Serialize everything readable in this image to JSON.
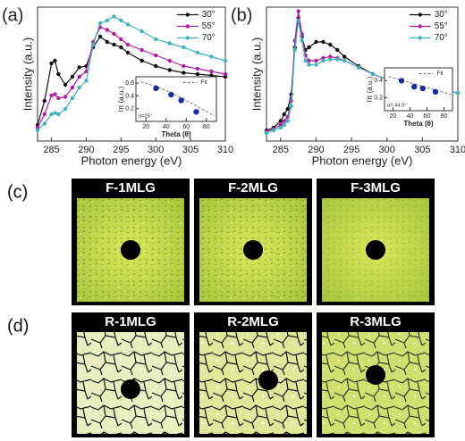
{
  "chart_data": [
    {
      "type": "line",
      "panel_label": "(a)",
      "xlabel": "Photon energy (eV)",
      "ylabel": "Intensity (a.u.)",
      "x": [
        283,
        284,
        285,
        285.5,
        286,
        287,
        288,
        289,
        290,
        291,
        292,
        293,
        294,
        295,
        296,
        298,
        300,
        302,
        304,
        306,
        308,
        310
      ],
      "xlim": [
        283,
        310
      ],
      "xticks": [
        285,
        290,
        295,
        300,
        305,
        310
      ],
      "ylim": [
        0,
        1
      ],
      "legend": "top-right",
      "series": [
        {
          "name": "30°",
          "color": "#111111",
          "values": [
            0.12,
            0.3,
            0.58,
            0.6,
            0.5,
            0.42,
            0.48,
            0.55,
            0.56,
            0.7,
            0.78,
            0.74,
            0.72,
            0.7,
            0.66,
            0.6,
            0.56,
            0.53,
            0.51,
            0.5,
            0.49,
            0.48
          ]
        },
        {
          "name": "55°",
          "color": "#b01fa0",
          "values": [
            0.1,
            0.2,
            0.34,
            0.35,
            0.32,
            0.33,
            0.4,
            0.48,
            0.52,
            0.74,
            0.85,
            0.83,
            0.8,
            0.76,
            0.72,
            0.68,
            0.64,
            0.6,
            0.56,
            0.54,
            0.52,
            0.5
          ]
        },
        {
          "name": "70°",
          "color": "#3fb5b5",
          "values": [
            0.08,
            0.13,
            0.2,
            0.21,
            0.2,
            0.24,
            0.32,
            0.4,
            0.45,
            0.72,
            0.88,
            0.9,
            0.93,
            0.9,
            0.87,
            0.82,
            0.76,
            0.73,
            0.7,
            0.66,
            0.63,
            0.6
          ]
        }
      ]
    },
    {
      "type": "scatter",
      "xlabel": "Theta (θ)",
      "ylabel": "Iπ (a.u.)",
      "annotation": "α=25°",
      "xlim": [
        10,
        90
      ],
      "xticks": [
        20,
        40,
        60,
        80
      ],
      "ylim": [
        0,
        0.7
      ],
      "yticks": [
        0.2,
        0.4,
        0.6
      ],
      "legend": "top-right",
      "series": [
        {
          "name": "Fit",
          "color": "#777777",
          "x": [
            15,
            30,
            45,
            60,
            75,
            88
          ],
          "values": [
            0.62,
            0.55,
            0.45,
            0.33,
            0.2,
            0.09
          ]
        }
      ],
      "points": {
        "color": "#1a2a9a",
        "x": [
          30,
          45,
          55,
          70
        ],
        "values": [
          0.52,
          0.42,
          0.33,
          0.15
        ]
      }
    },
    {
      "type": "line",
      "panel_label": "(b)",
      "xlabel": "Photon energy (eV)",
      "ylabel": "Intensity (a.u.)",
      "x": [
        283,
        284,
        285,
        285.5,
        286,
        286.5,
        287,
        287.5,
        288,
        288.5,
        289,
        290,
        291,
        292,
        293,
        294,
        296,
        298,
        300,
        303,
        306,
        310
      ],
      "xlim": [
        283,
        310
      ],
      "xticks": [
        285,
        290,
        295,
        300,
        305,
        310
      ],
      "ylim": [
        0,
        1
      ],
      "legend": "top-right",
      "series": [
        {
          "name": "30°",
          "color": "#111111",
          "values": [
            0.08,
            0.1,
            0.15,
            0.2,
            0.24,
            0.35,
            0.7,
            0.92,
            0.78,
            0.68,
            0.7,
            0.74,
            0.74,
            0.72,
            0.68,
            0.63,
            0.56,
            0.5,
            0.46,
            0.42,
            0.39,
            0.36
          ]
        },
        {
          "name": "55°",
          "color": "#b01fa0",
          "values": [
            0.07,
            0.09,
            0.12,
            0.15,
            0.18,
            0.3,
            0.75,
            0.97,
            0.8,
            0.64,
            0.6,
            0.6,
            0.62,
            0.63,
            0.62,
            0.6,
            0.55,
            0.5,
            0.46,
            0.42,
            0.39,
            0.36
          ]
        },
        {
          "name": "70°",
          "color": "#3fb5b5",
          "values": [
            0.06,
            0.08,
            0.1,
            0.12,
            0.15,
            0.26,
            0.68,
            0.9,
            0.75,
            0.6,
            0.57,
            0.57,
            0.6,
            0.61,
            0.61,
            0.6,
            0.55,
            0.5,
            0.46,
            0.42,
            0.39,
            0.36
          ]
        }
      ]
    },
    {
      "type": "scatter",
      "xlabel": "Theta (θ)",
      "ylabel": "Iπ (a.u.)",
      "annotation": "α= 44.5°",
      "xlim": [
        10,
        90
      ],
      "xticks": [
        20,
        40,
        60,
        80
      ],
      "ylim": [
        0.05,
        0.55
      ],
      "yticks": [
        0.2,
        0.4
      ],
      "legend": "top-right",
      "series": [
        {
          "name": "Fit",
          "color": "#777777",
          "x": [
            15,
            88
          ],
          "values": [
            0.45,
            0.24
          ]
        }
      ],
      "points": {
        "color": "#1a2a9a",
        "x": [
          30,
          45,
          55,
          70
        ],
        "values": [
          0.4,
          0.33,
          0.31,
          0.27
        ]
      }
    }
  ],
  "image_panels": [
    {
      "label": "(c)",
      "tiles": [
        "F-1MLG",
        "F-2MLG",
        "F-3MLG"
      ]
    },
    {
      "label": "(d)",
      "tiles": [
        "R-1MLG",
        "R-2MLG",
        "R-3MLG"
      ]
    }
  ]
}
